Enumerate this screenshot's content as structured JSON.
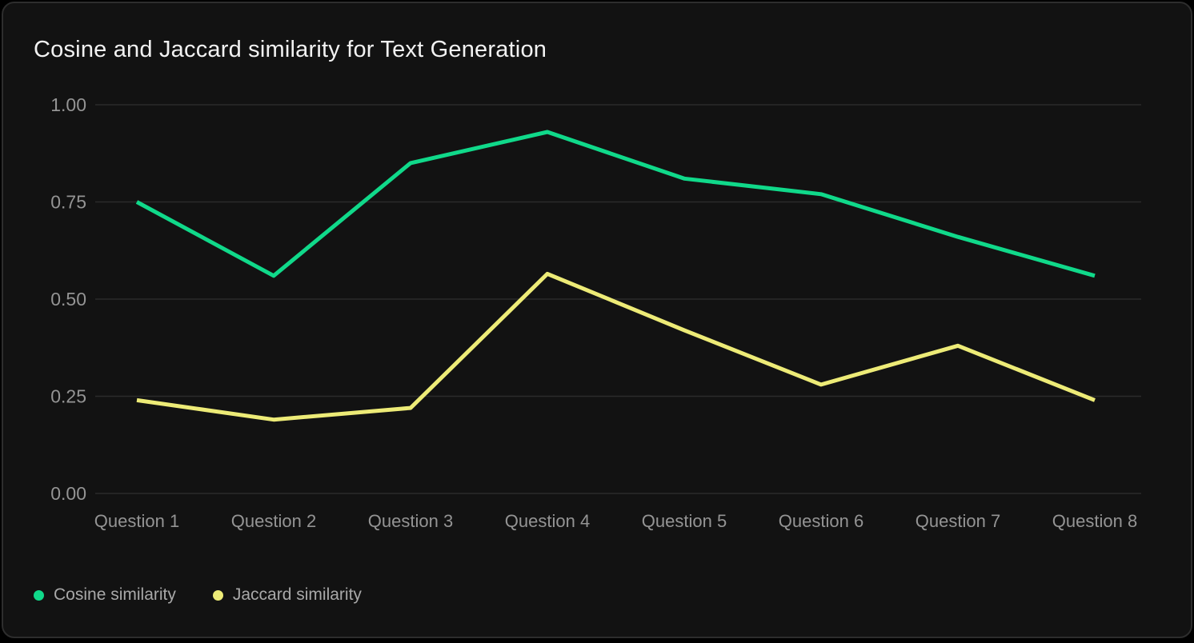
{
  "card": {
    "title": "Cosine and Jaccard similarity for Text Generation"
  },
  "colors": {
    "page_background": "#000000",
    "card_background": "#121212",
    "card_border": "#2d2d2d",
    "grid_line": "#2b2b2b",
    "axis_label_text": "#949494",
    "title_text": "#f2f2f2",
    "legend_text": "#a8a8a8",
    "cosine_green": "#10d98a",
    "jaccard_yellow": "#edeb77"
  },
  "chart_data": {
    "type": "line",
    "title": "Cosine and Jaccard similarity for Text Generation",
    "xlabel": "",
    "ylabel": "",
    "categories": [
      "Question 1",
      "Question 2",
      "Question 3",
      "Question 4",
      "Question 5",
      "Question 6",
      "Question 7",
      "Question 8"
    ],
    "series": [
      {
        "name": "Cosine similarity",
        "color": "#10d98a",
        "values": [
          0.75,
          0.56,
          0.85,
          0.93,
          0.81,
          0.77,
          0.66,
          0.56
        ]
      },
      {
        "name": "Jaccard similarity",
        "color": "#edeb77",
        "values": [
          0.24,
          0.19,
          0.22,
          0.565,
          0.42,
          0.28,
          0.38,
          0.24
        ]
      }
    ],
    "ylim": [
      0.0,
      1.0
    ],
    "ytick_labels": [
      "1.00",
      "0.75",
      "0.50",
      "0.25",
      "0.00"
    ],
    "ytick_values": [
      1.0,
      0.75,
      0.5,
      0.25,
      0.0
    ],
    "grid": "horizontal-only",
    "legend_position": "bottom-left"
  }
}
